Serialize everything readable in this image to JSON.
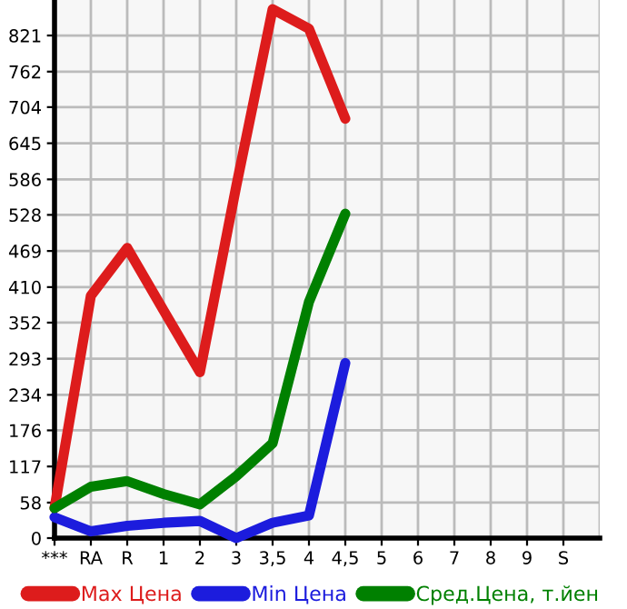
{
  "chart_data": {
    "type": "line",
    "categories": [
      "***",
      "RA",
      "R",
      "1",
      "2",
      "3",
      "3,5",
      "4",
      "4,5",
      "5",
      "6",
      "7",
      "8",
      "9",
      "S"
    ],
    "series": [
      {
        "name": "Max Цена",
        "color": "#dd1c1c",
        "values": [
          49,
          396,
          474,
          372,
          271,
          575,
          864,
          832,
          685,
          null,
          null,
          null,
          null,
          null,
          null
        ]
      },
      {
        "name": "Min Цена",
        "color": "#1c1cdd",
        "values": [
          34,
          11,
          20,
          25,
          28,
          0,
          25,
          37,
          286,
          null,
          null,
          null,
          null,
          null,
          null
        ]
      },
      {
        "name": "Сред.Цена, т.йен",
        "color": "#008000",
        "values": [
          49,
          84,
          93,
          72,
          55,
          101,
          155,
          386,
          530,
          null,
          null,
          null,
          null,
          null,
          null
        ]
      }
    ],
    "ylim": [
      0,
      879
    ],
    "yticks": [
      0,
      58,
      117,
      176,
      234,
      293,
      352,
      410,
      469,
      528,
      586,
      645,
      704,
      762,
      821
    ],
    "grid": true,
    "legend": "bottom",
    "marker": "none",
    "line_style": "solid"
  }
}
